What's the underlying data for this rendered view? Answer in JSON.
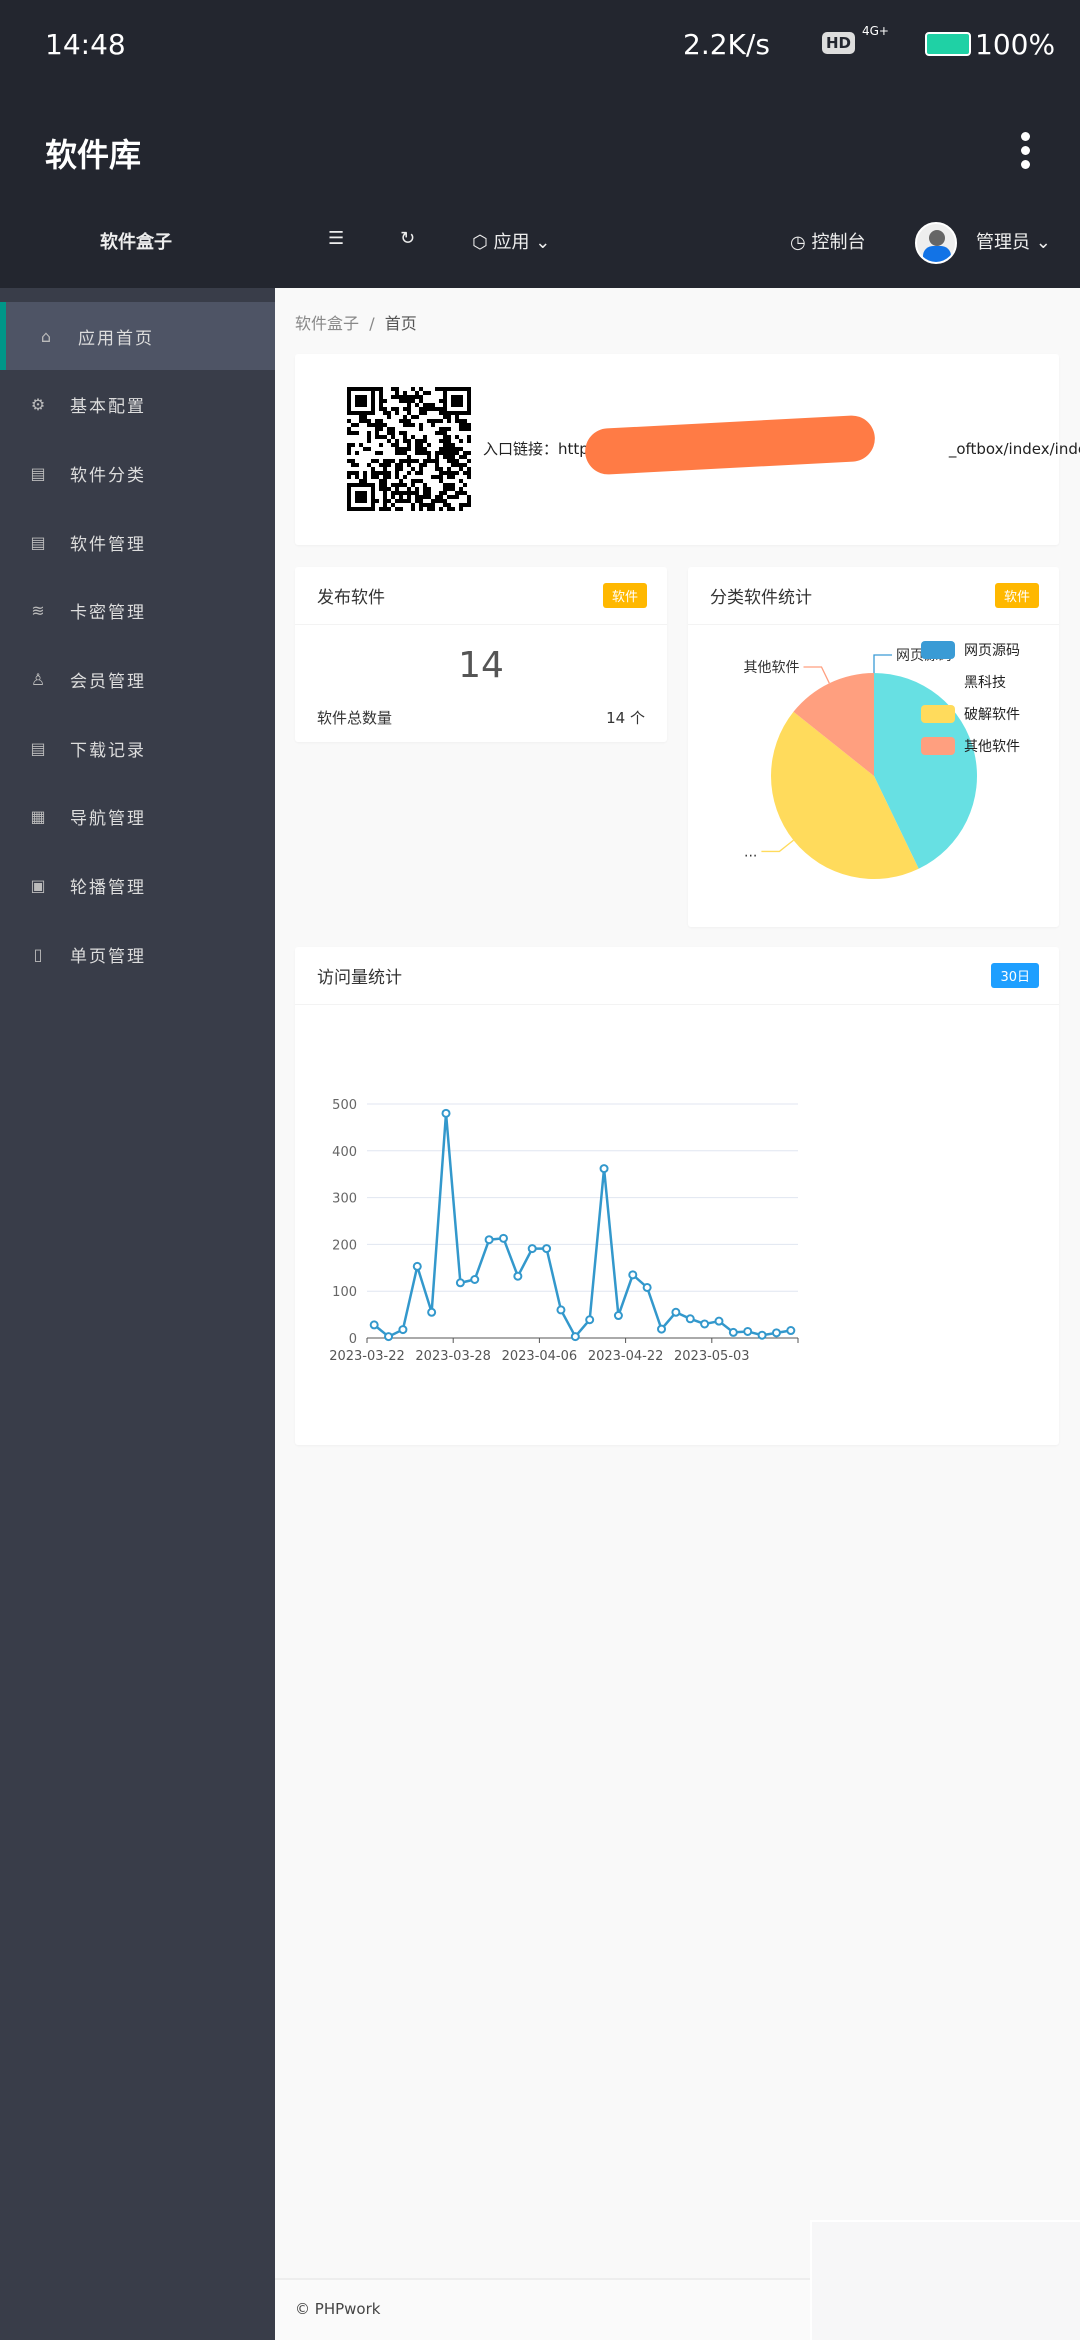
{
  "status_bar": {
    "time": "14:48",
    "net_speed": "2.2K/s",
    "hd": "HD",
    "network": "4G+",
    "battery": "100%"
  },
  "app": {
    "title": "软件库"
  },
  "header": {
    "logo": "软件盒子",
    "apps_label": "应用",
    "console_label": "控制台",
    "user_name": "管理员"
  },
  "sidebar": {
    "items": [
      {
        "label": "应用首页",
        "icon": "home-icon",
        "active": true
      },
      {
        "label": "基本配置",
        "icon": "gear-icon"
      },
      {
        "label": "软件分类",
        "icon": "document-icon"
      },
      {
        "label": "软件管理",
        "icon": "document-icon"
      },
      {
        "label": "卡密管理",
        "icon": "layers-icon"
      },
      {
        "label": "会员管理",
        "icon": "users-icon"
      },
      {
        "label": "下载记录",
        "icon": "document-icon"
      },
      {
        "label": "导航管理",
        "icon": "navigation-icon"
      },
      {
        "label": "轮播管理",
        "icon": "image-icon"
      },
      {
        "label": "单页管理",
        "icon": "page-icon"
      }
    ]
  },
  "breadcrumb": {
    "root": "软件盒子",
    "sep": "/",
    "current": "首页"
  },
  "entry": {
    "label": "入口链接：",
    "url_start": "http",
    "url_end": "_oftbox/index/index"
  },
  "publish_card": {
    "title": "发布软件",
    "badge": "软件",
    "count": "14",
    "total_label": "软件总数量",
    "total_value": "14 个"
  },
  "category_card": {
    "title": "分类软件统计",
    "badge": "软件"
  },
  "visits_card": {
    "title": "访问量统计",
    "badge": "30日"
  },
  "colors": {
    "accent": "#009688",
    "badge_orange": "#ffb800",
    "badge_blue": "#1e9fff",
    "line": "#3398cc"
  },
  "chart_data": [
    {
      "type": "pie",
      "slices": [
        {
          "name": "网页源码",
          "value": 0,
          "color": "#3a9bd5",
          "label": "网页源码"
        },
        {
          "name": "黑科技",
          "value": 6,
          "color": "#67e0e3",
          "label": ""
        },
        {
          "name": "破解软件",
          "value": 6,
          "color": "#ffdb5c",
          "label": "..."
        },
        {
          "name": "其他软件",
          "value": 2,
          "color": "#ff9f7f",
          "label": "其他软件"
        }
      ],
      "legend": [
        "网页源码",
        "黑科技",
        "破解软件",
        "其他软件"
      ],
      "legend_position": "right"
    },
    {
      "type": "line",
      "x_tick_labels": [
        "2023-03-22",
        "2023-03-28",
        "2023-04-06",
        "2023-04-22",
        "2023-05-03"
      ],
      "values": [
        28,
        3,
        18,
        153,
        55,
        480,
        118,
        125,
        210,
        213,
        132,
        191,
        191,
        60,
        3,
        39,
        362,
        48,
        135,
        108,
        19,
        55,
        41,
        30,
        36,
        12,
        14,
        6,
        11,
        16
      ],
      "yticks": [
        0,
        100,
        200,
        300,
        400,
        500
      ],
      "ylim": [
        0,
        500
      ],
      "grid": true
    }
  ],
  "footer": {
    "copyright": "© PHPwork"
  }
}
